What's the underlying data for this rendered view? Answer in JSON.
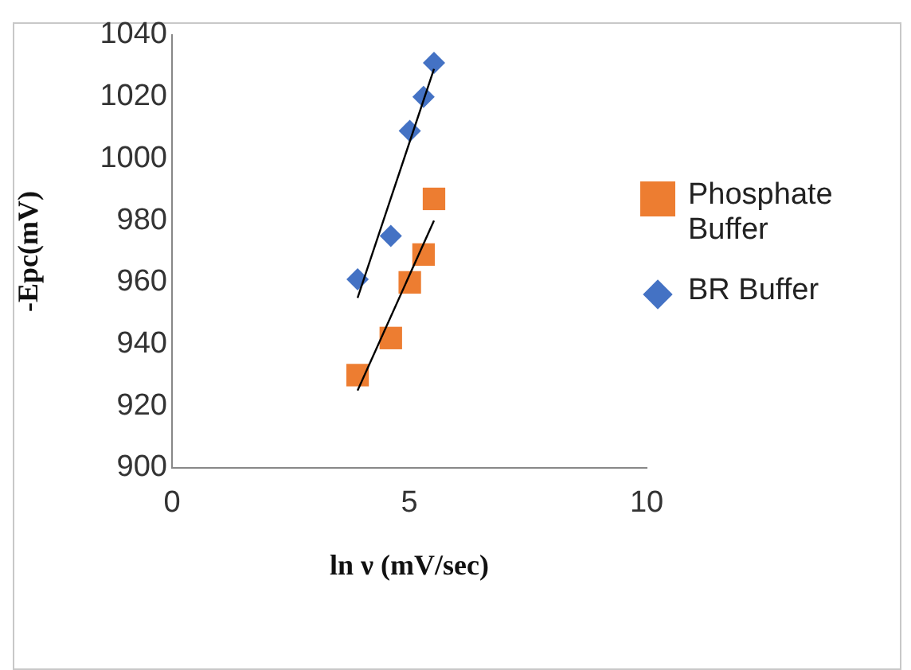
{
  "chart_data": {
    "type": "scatter",
    "xlabel": "ln ν (mV/sec)",
    "ylabel": "-Epc(mV)",
    "xlim": [
      0,
      10
    ],
    "xticks": [
      0,
      5,
      10
    ],
    "ylim": [
      900,
      1040
    ],
    "yticks": [
      900,
      920,
      940,
      960,
      980,
      1000,
      1020,
      1040
    ],
    "grid": false,
    "legend": "right",
    "series": [
      {
        "name": "Phosphate Buffer",
        "color": "#ed7d31",
        "marker": "square",
        "x": [
          3.91,
          4.61,
          5.01,
          5.3,
          5.52
        ],
        "values": [
          930,
          942,
          960,
          969,
          987
        ]
      },
      {
        "name": "BR Buffer",
        "color": "#4472c4",
        "marker": "diamond",
        "x": [
          3.91,
          4.61,
          5.01,
          5.3,
          5.52
        ],
        "values": [
          961,
          975,
          1009,
          1020,
          1031
        ]
      },
      {
        "type": "line",
        "color": "#000000",
        "marker": "none",
        "x": [
          3.91,
          5.52
        ],
        "values": [
          925,
          980
        ]
      },
      {
        "type": "line",
        "color": "#000000",
        "marker": "none",
        "x": [
          3.91,
          5.52
        ],
        "values": [
          955,
          1029
        ]
      }
    ]
  }
}
